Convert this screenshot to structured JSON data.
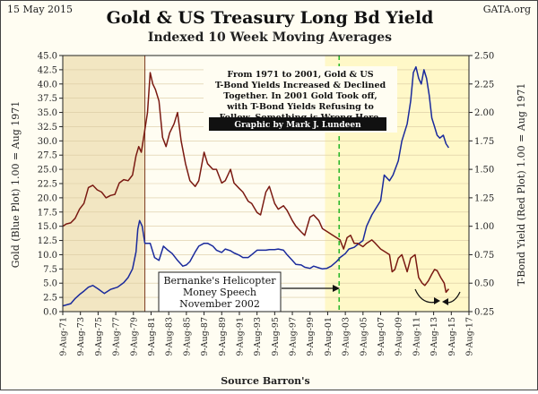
{
  "header": {
    "date": "15 May 2015",
    "credit": "GATA.org",
    "title": "Gold & US Treasury Long Bd Yield",
    "subtitle": "Indexed 10 Week Moving Averages"
  },
  "note": {
    "lines": [
      "From 1971 to 2001, Gold & US",
      "T-Bond Yields Increased & Declined",
      "Together.  In 2001 Gold Took off,",
      "with T-Bond Yields Refusing to",
      "Follow.  Something is Wrong Here."
    ],
    "banner": "Graphic by Mark J. Lundeen"
  },
  "callout": {
    "lines": [
      "Bernanke's Helicopter",
      "Money Speech",
      "November 2002"
    ]
  },
  "source": "Source Barron's",
  "colors": {
    "gold_line": "#1a2a9c",
    "bond_line": "#7a1a12",
    "shade_left": "#f2e6c2",
    "shade_right": "#fff8c8",
    "plot_bg": "#fffdf2",
    "grid": "#d9c9a0",
    "dashed_marker": "#2db82d",
    "banner_bg": "#111111"
  },
  "chart_data": {
    "type": "line",
    "title": "Gold & US Treasury Long Bd Yield",
    "subtitle": "Indexed 10 Week Moving Averages",
    "xlabel": "Source Barron's",
    "ylabel_left": "Gold (Blue Plot)   1.00 = Aug 1971",
    "ylabel_right": "T-Bond Yield (Red Plot)   1.00 = Aug 1971",
    "xlim": [
      1971.6,
      2017.6
    ],
    "ylim_left": [
      0,
      45
    ],
    "ylim_right": [
      0.25,
      2.5
    ],
    "yticks_left": [
      "0.0",
      "2.5",
      "5.0",
      "7.5",
      "10.0",
      "12.5",
      "15.0",
      "17.5",
      "20.0",
      "22.5",
      "25.0",
      "27.5",
      "30.0",
      "32.5",
      "35.0",
      "37.5",
      "40.0",
      "42.5",
      "45.0"
    ],
    "yticks_left_values": [
      0,
      2.5,
      5,
      7.5,
      10,
      12.5,
      15,
      17.5,
      20,
      22.5,
      25,
      27.5,
      30,
      32.5,
      35,
      37.5,
      40,
      42.5,
      45
    ],
    "yticks_right": [
      "0.25",
      "0.50",
      "0.75",
      "1.00",
      "1.25",
      "1.50",
      "1.75",
      "2.00",
      "2.25",
      "2.50"
    ],
    "yticks_right_values": [
      0.25,
      0.5,
      0.75,
      1.0,
      1.25,
      1.5,
      1.75,
      2.0,
      2.25,
      2.5
    ],
    "xticks": [
      "9-Aug-71",
      "9-Aug-73",
      "9-Aug-75",
      "9-Aug-77",
      "9-Aug-79",
      "9-Aug-81",
      "9-Aug-83",
      "9-Aug-85",
      "9-Aug-87",
      "9-Aug-89",
      "9-Aug-91",
      "9-Aug-93",
      "9-Aug-95",
      "9-Aug-97",
      "9-Aug-99",
      "9-Aug-01",
      "9-Aug-03",
      "9-Aug-05",
      "9-Aug-07",
      "9-Aug-09",
      "9-Aug-11",
      "9-Aug-13",
      "9-Aug-15",
      "9-Aug-17"
    ],
    "xticks_values": [
      1971.6,
      1973.6,
      1975.6,
      1977.6,
      1979.6,
      1981.6,
      1983.6,
      1985.6,
      1987.6,
      1989.6,
      1991.6,
      1993.6,
      1995.6,
      1997.6,
      1999.6,
      2001.6,
      2003.6,
      2005.6,
      2007.6,
      2009.6,
      2011.6,
      2013.6,
      2015.6,
      2017.6
    ],
    "shaded_regions": [
      {
        "from": 1971.6,
        "to": 1980.9,
        "label": "1971-1980 tan shade"
      },
      {
        "from": 2001.3,
        "to": 2017.6,
        "label": "2001 onward yellow shade"
      }
    ],
    "vertical_lines": [
      {
        "x": 1980.9,
        "style": "solid"
      },
      {
        "x": 2002.9,
        "style": "dashed"
      }
    ],
    "series": [
      {
        "name": "Gold (Blue Plot)",
        "axis": "left",
        "points": [
          [
            1971.6,
            1.0
          ],
          [
            1972.5,
            1.4
          ],
          [
            1973.0,
            2.3
          ],
          [
            1973.5,
            3.0
          ],
          [
            1974.0,
            3.6
          ],
          [
            1974.5,
            4.3
          ],
          [
            1975.0,
            4.6
          ],
          [
            1975.6,
            4.0
          ],
          [
            1976.3,
            3.2
          ],
          [
            1977.0,
            3.9
          ],
          [
            1977.8,
            4.3
          ],
          [
            1978.5,
            5.1
          ],
          [
            1979.0,
            6.0
          ],
          [
            1979.5,
            7.5
          ],
          [
            1979.9,
            10.5
          ],
          [
            1980.1,
            14.5
          ],
          [
            1980.3,
            16.0
          ],
          [
            1980.6,
            15.0
          ],
          [
            1980.9,
            12.0
          ],
          [
            1981.5,
            12.0
          ],
          [
            1982.0,
            9.5
          ],
          [
            1982.5,
            9.0
          ],
          [
            1983.0,
            11.5
          ],
          [
            1983.5,
            10.8
          ],
          [
            1984.0,
            10.2
          ],
          [
            1984.6,
            9.0
          ],
          [
            1985.2,
            8.0
          ],
          [
            1985.6,
            8.2
          ],
          [
            1986.0,
            8.8
          ],
          [
            1986.6,
            10.5
          ],
          [
            1987.0,
            11.5
          ],
          [
            1987.6,
            12.0
          ],
          [
            1988.0,
            12.0
          ],
          [
            1988.6,
            11.5
          ],
          [
            1989.0,
            10.8
          ],
          [
            1989.6,
            10.4
          ],
          [
            1990.0,
            11.0
          ],
          [
            1990.6,
            10.7
          ],
          [
            1991.0,
            10.3
          ],
          [
            1991.6,
            9.9
          ],
          [
            1992.0,
            9.5
          ],
          [
            1992.6,
            9.5
          ],
          [
            1993.0,
            10.0
          ],
          [
            1993.6,
            10.8
          ],
          [
            1994.0,
            10.8
          ],
          [
            1994.6,
            10.8
          ],
          [
            1995.0,
            10.9
          ],
          [
            1995.6,
            10.9
          ],
          [
            1996.0,
            11.0
          ],
          [
            1996.6,
            10.8
          ],
          [
            1997.0,
            10.0
          ],
          [
            1997.6,
            9.0
          ],
          [
            1998.0,
            8.3
          ],
          [
            1998.6,
            8.2
          ],
          [
            1999.0,
            7.8
          ],
          [
            1999.6,
            7.6
          ],
          [
            2000.0,
            8.0
          ],
          [
            2000.6,
            7.7
          ],
          [
            2001.0,
            7.5
          ],
          [
            2001.5,
            7.6
          ],
          [
            2002.0,
            8.0
          ],
          [
            2002.6,
            8.8
          ],
          [
            2003.0,
            9.5
          ],
          [
            2003.6,
            10.2
          ],
          [
            2004.0,
            11.0
          ],
          [
            2004.6,
            11.3
          ],
          [
            2005.0,
            11.8
          ],
          [
            2005.6,
            12.5
          ],
          [
            2006.0,
            15.0
          ],
          [
            2006.6,
            17.0
          ],
          [
            2007.0,
            18.0
          ],
          [
            2007.6,
            19.5
          ],
          [
            2008.0,
            24.0
          ],
          [
            2008.6,
            23.0
          ],
          [
            2009.0,
            24.0
          ],
          [
            2009.6,
            26.5
          ],
          [
            2010.0,
            30.0
          ],
          [
            2010.6,
            33.0
          ],
          [
            2011.0,
            37.0
          ],
          [
            2011.3,
            42.0
          ],
          [
            2011.6,
            43.0
          ],
          [
            2011.9,
            41.0
          ],
          [
            2012.2,
            40.0
          ],
          [
            2012.5,
            42.5
          ],
          [
            2012.8,
            41.0
          ],
          [
            2013.1,
            38.0
          ],
          [
            2013.4,
            34.0
          ],
          [
            2013.7,
            32.5
          ],
          [
            2014.0,
            31.0
          ],
          [
            2014.3,
            30.5
          ],
          [
            2014.7,
            31.0
          ],
          [
            2015.0,
            29.5
          ],
          [
            2015.3,
            28.8
          ]
        ]
      },
      {
        "name": "T-Bond Yield (Red Plot)",
        "axis": "right",
        "points": [
          [
            1971.6,
            1.0
          ],
          [
            1972.0,
            1.02
          ],
          [
            1972.5,
            1.03
          ],
          [
            1973.0,
            1.07
          ],
          [
            1973.5,
            1.15
          ],
          [
            1974.0,
            1.2
          ],
          [
            1974.5,
            1.34
          ],
          [
            1975.0,
            1.36
          ],
          [
            1975.5,
            1.32
          ],
          [
            1976.0,
            1.3
          ],
          [
            1976.5,
            1.25
          ],
          [
            1977.0,
            1.27
          ],
          [
            1977.5,
            1.28
          ],
          [
            1978.0,
            1.38
          ],
          [
            1978.5,
            1.41
          ],
          [
            1979.0,
            1.4
          ],
          [
            1979.5,
            1.45
          ],
          [
            1979.9,
            1.62
          ],
          [
            1980.2,
            1.7
          ],
          [
            1980.5,
            1.65
          ],
          [
            1980.9,
            1.85
          ],
          [
            1981.2,
            2.0
          ],
          [
            1981.5,
            2.35
          ],
          [
            1981.8,
            2.25
          ],
          [
            1982.1,
            2.2
          ],
          [
            1982.5,
            2.1
          ],
          [
            1982.9,
            1.78
          ],
          [
            1983.3,
            1.7
          ],
          [
            1983.7,
            1.82
          ],
          [
            1984.2,
            1.9
          ],
          [
            1984.6,
            2.0
          ],
          [
            1985.0,
            1.75
          ],
          [
            1985.5,
            1.55
          ],
          [
            1986.0,
            1.4
          ],
          [
            1986.6,
            1.35
          ],
          [
            1987.0,
            1.4
          ],
          [
            1987.6,
            1.65
          ],
          [
            1988.0,
            1.55
          ],
          [
            1988.6,
            1.5
          ],
          [
            1989.0,
            1.5
          ],
          [
            1989.6,
            1.38
          ],
          [
            1990.0,
            1.4
          ],
          [
            1990.6,
            1.5
          ],
          [
            1991.0,
            1.38
          ],
          [
            1991.6,
            1.33
          ],
          [
            1992.0,
            1.3
          ],
          [
            1992.6,
            1.22
          ],
          [
            1993.0,
            1.2
          ],
          [
            1993.6,
            1.12
          ],
          [
            1994.0,
            1.1
          ],
          [
            1994.6,
            1.3
          ],
          [
            1995.0,
            1.35
          ],
          [
            1995.6,
            1.2
          ],
          [
            1996.0,
            1.15
          ],
          [
            1996.6,
            1.18
          ],
          [
            1997.0,
            1.14
          ],
          [
            1997.6,
            1.05
          ],
          [
            1998.0,
            1.0
          ],
          [
            1998.6,
            0.95
          ],
          [
            1999.0,
            0.92
          ],
          [
            1999.6,
            1.08
          ],
          [
            2000.0,
            1.1
          ],
          [
            2000.6,
            1.05
          ],
          [
            2001.0,
            0.98
          ],
          [
            2001.6,
            0.95
          ],
          [
            2002.0,
            0.93
          ],
          [
            2002.6,
            0.9
          ],
          [
            2003.0,
            0.88
          ],
          [
            2003.4,
            0.8
          ],
          [
            2003.8,
            0.9
          ],
          [
            2004.2,
            0.92
          ],
          [
            2004.6,
            0.85
          ],
          [
            2005.0,
            0.85
          ],
          [
            2005.6,
            0.82
          ],
          [
            2006.0,
            0.85
          ],
          [
            2006.6,
            0.88
          ],
          [
            2007.0,
            0.85
          ],
          [
            2007.6,
            0.8
          ],
          [
            2008.0,
            0.78
          ],
          [
            2008.6,
            0.75
          ],
          [
            2008.9,
            0.6
          ],
          [
            2009.2,
            0.62
          ],
          [
            2009.6,
            0.72
          ],
          [
            2010.0,
            0.75
          ],
          [
            2010.6,
            0.6
          ],
          [
            2011.0,
            0.72
          ],
          [
            2011.5,
            0.75
          ],
          [
            2011.9,
            0.55
          ],
          [
            2012.3,
            0.5
          ],
          [
            2012.6,
            0.48
          ],
          [
            2013.0,
            0.52
          ],
          [
            2013.4,
            0.58
          ],
          [
            2013.7,
            0.62
          ],
          [
            2014.0,
            0.61
          ],
          [
            2014.4,
            0.55
          ],
          [
            2014.8,
            0.5
          ],
          [
            2015.0,
            0.42
          ],
          [
            2015.3,
            0.45
          ]
        ]
      }
    ]
  }
}
